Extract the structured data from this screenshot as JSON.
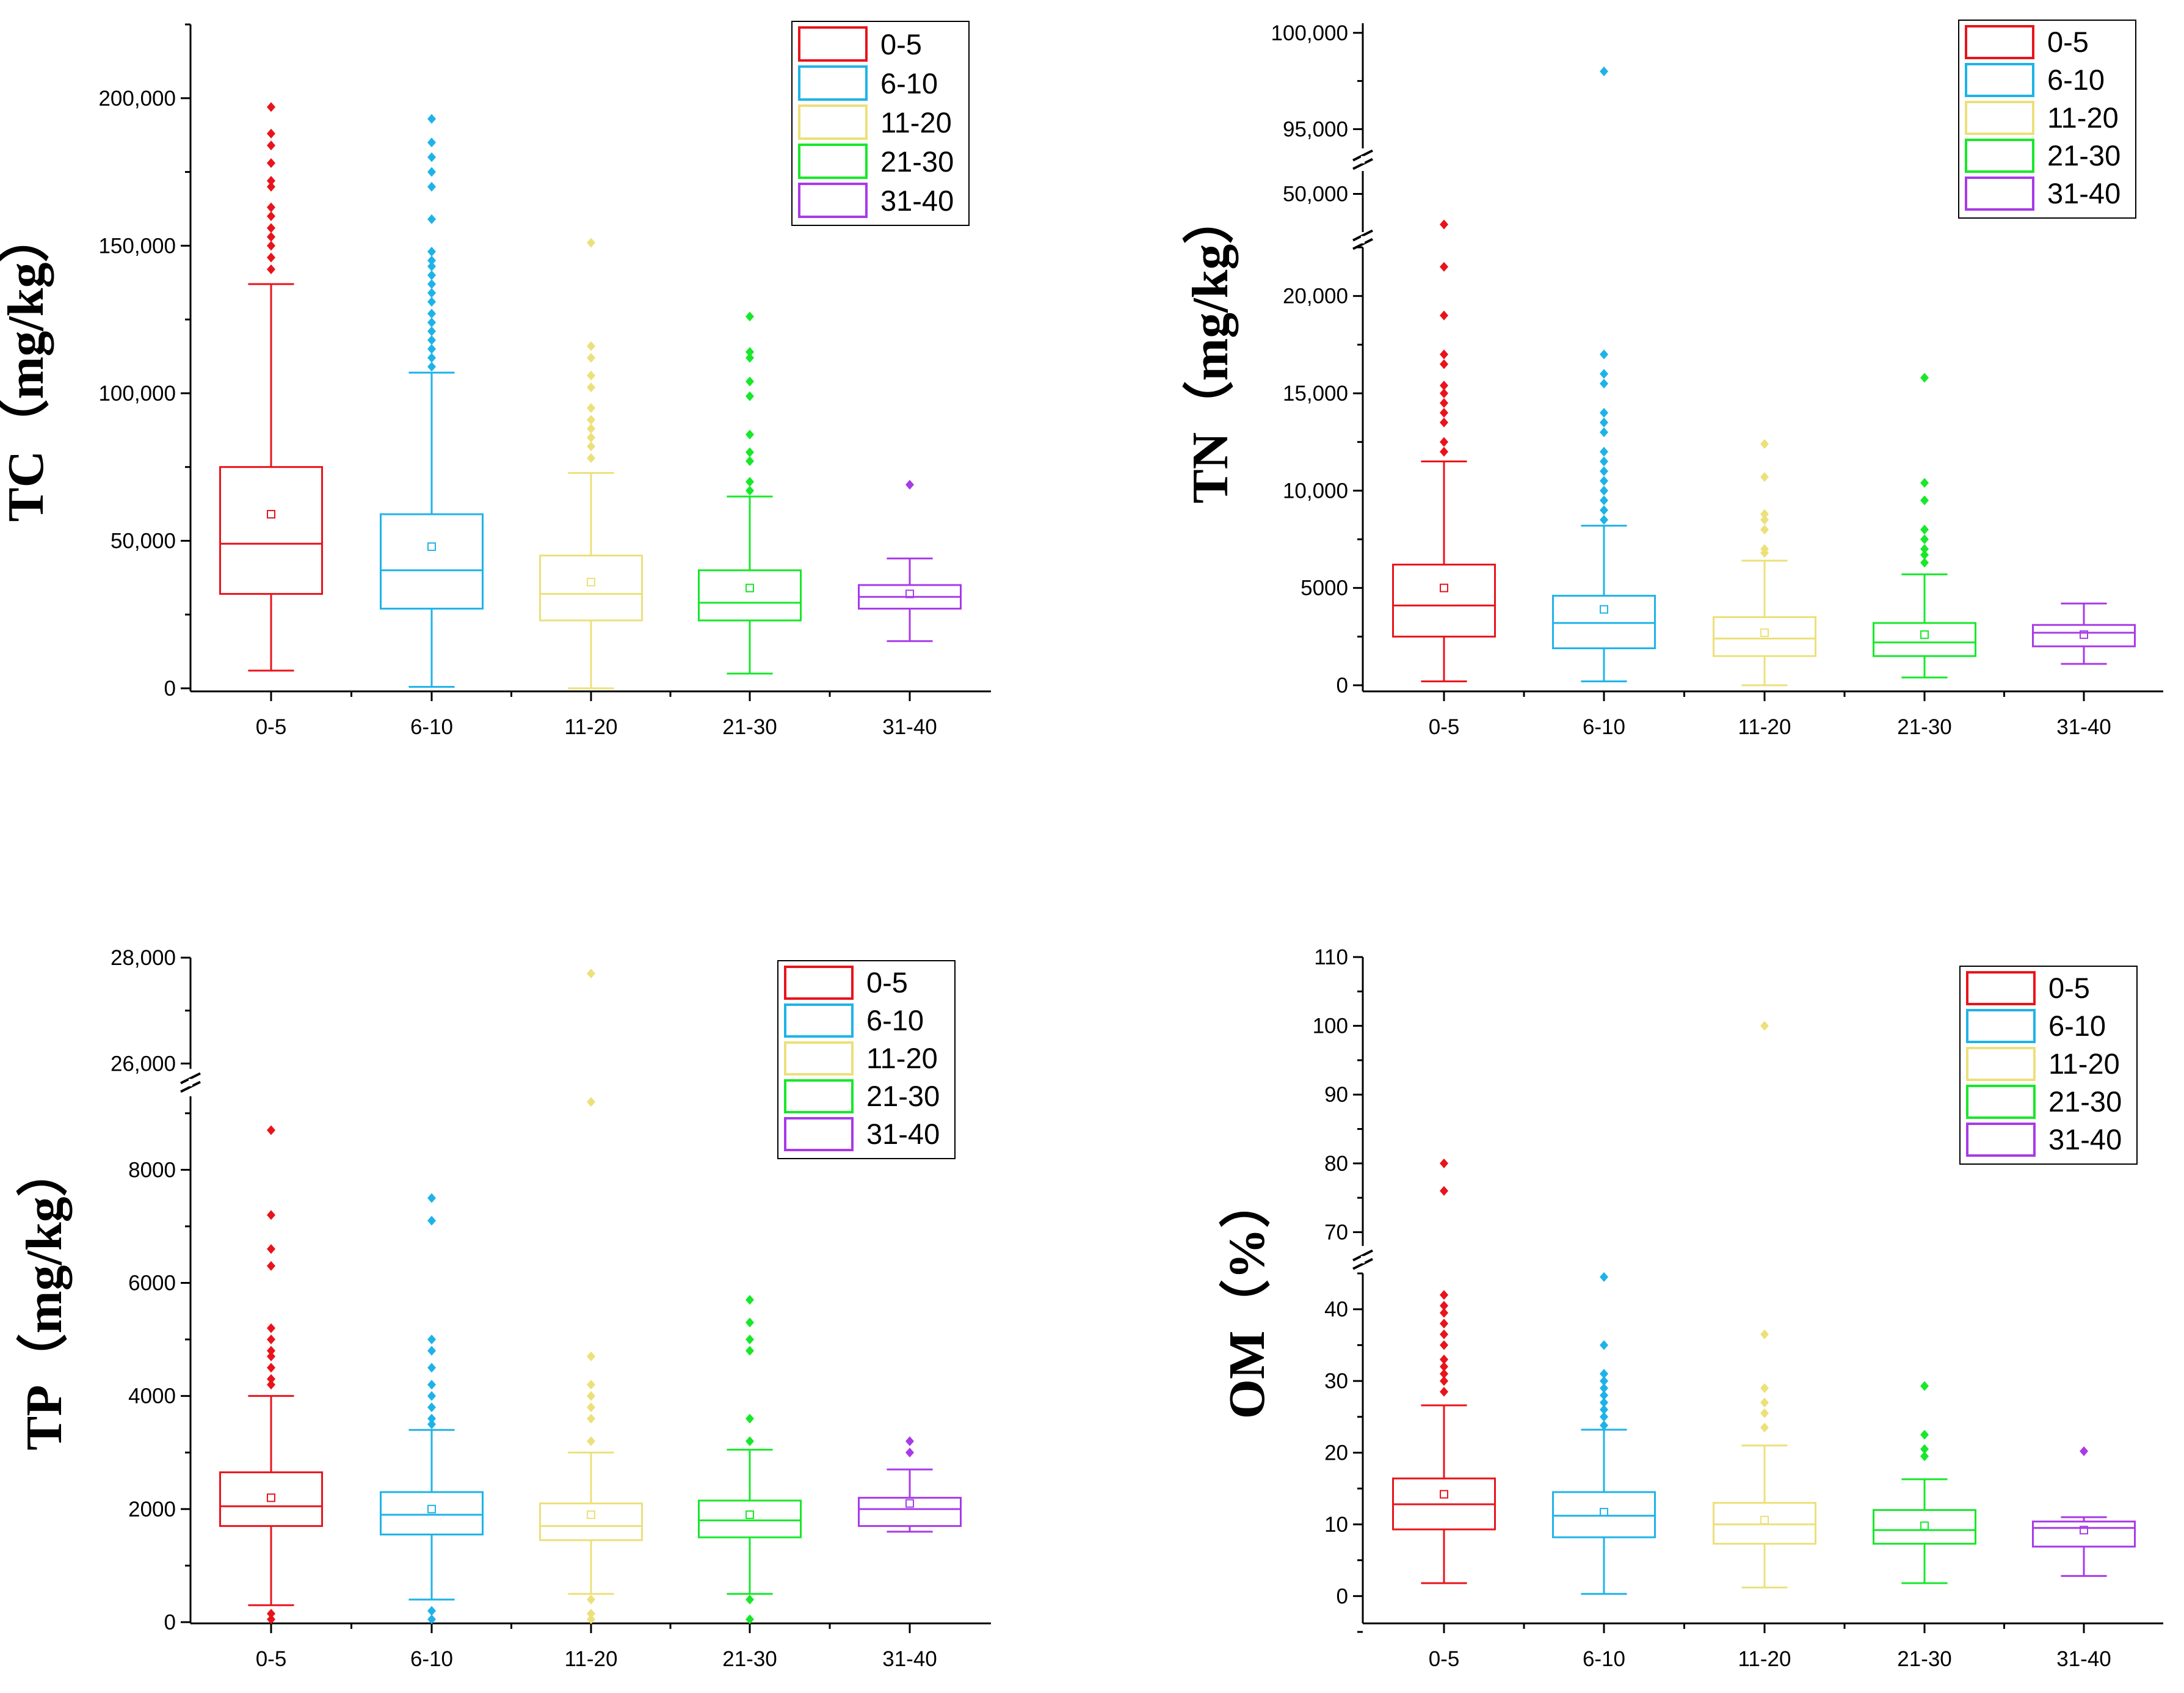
{
  "legend_entries": [
    "0-5",
    "6-10",
    "11-20",
    "21-30",
    "31-40"
  ],
  "colors": {
    "0-5": "#e8141b",
    "6-10": "#1eb3e8",
    "11-20": "#ece07a",
    "21-30": "#17e82a",
    "31-40": "#a83ae8"
  },
  "chart_data": [
    {
      "type": "box",
      "id": "TC",
      "ylabel": "TC（mg/kg）",
      "categories": [
        "0-5",
        "6-10",
        "11-20",
        "21-30",
        "31-40"
      ],
      "yticks": [
        "0",
        "50,000",
        "100,000",
        "150,000",
        "200,000"
      ],
      "ylim": [
        0,
        225000
      ],
      "boxes": [
        {
          "category": "0-5",
          "q1": 32000,
          "median": 49000,
          "q3": 75000,
          "whisker_low": 6000,
          "whisker_high": 137000,
          "mean": 59000,
          "outliers": [
            142000,
            146000,
            150000,
            153000,
            156000,
            160000,
            163000,
            170000,
            172000,
            178000,
            184000,
            188000,
            197000
          ]
        },
        {
          "category": "6-10",
          "q1": 27000,
          "median": 40000,
          "q3": 59000,
          "whisker_low": 500,
          "whisker_high": 107000,
          "mean": 48000,
          "outliers": [
            109000,
            112000,
            115000,
            118000,
            121000,
            124000,
            127000,
            131000,
            134000,
            137000,
            140000,
            143000,
            145000,
            148000,
            159000,
            170000,
            175000,
            180000,
            185000,
            193000
          ]
        },
        {
          "category": "11-20",
          "q1": 23000,
          "median": 32000,
          "q3": 45000,
          "whisker_low": 0,
          "whisker_high": 73000,
          "mean": 36000,
          "outliers": [
            78000,
            82000,
            85000,
            88000,
            91000,
            95000,
            102000,
            106000,
            112000,
            116000,
            151000
          ]
        },
        {
          "category": "21-30",
          "q1": 23000,
          "median": 29000,
          "q3": 40000,
          "whisker_low": 5000,
          "whisker_high": 65000,
          "mean": 34000,
          "outliers": [
            67000,
            70000,
            77000,
            80000,
            86000,
            99000,
            104000,
            112000,
            114000,
            126000
          ]
        },
        {
          "category": "31-40",
          "q1": 27000,
          "median": 31000,
          "q3": 35000,
          "whisker_low": 16000,
          "whisker_high": 44000,
          "mean": 32000,
          "outliers": [
            69000
          ]
        }
      ]
    },
    {
      "type": "box",
      "id": "TN",
      "ylabel": "TN（mg/kg）",
      "categories": [
        "0-5",
        "6-10",
        "11-20",
        "21-30",
        "31-40"
      ],
      "yticks_lower": [
        "0",
        "5000",
        "10,000",
        "15,000",
        "20,000"
      ],
      "yticks_upper": [
        "50,000",
        "95,000",
        "100,000"
      ],
      "break_segments": [
        [
          0,
          22500
        ],
        [
          45000,
          53000
        ],
        [
          94000,
          100500
        ]
      ],
      "boxes": [
        {
          "category": "0-5",
          "q1": 2500,
          "median": 4100,
          "q3": 6200,
          "whisker_low": 200,
          "whisker_high": 11500,
          "mean": 5000,
          "outliers": [
            12000,
            12500,
            13500,
            14000,
            14500,
            15000,
            15400,
            16500,
            17000,
            19000,
            21500,
            46000
          ]
        },
        {
          "category": "6-10",
          "q1": 1900,
          "median": 3200,
          "q3": 4600,
          "whisker_low": 200,
          "whisker_high": 8200,
          "mean": 3900,
          "outliers": [
            8500,
            9000,
            9500,
            10000,
            10500,
            11000,
            11500,
            12000,
            13000,
            13500,
            14000,
            15500,
            16000,
            17000,
            98000
          ]
        },
        {
          "category": "11-20",
          "q1": 1500,
          "median": 2400,
          "q3": 3500,
          "whisker_low": 0,
          "whisker_high": 6400,
          "mean": 2700,
          "outliers": [
            6800,
            7000,
            8000,
            8500,
            8800,
            10700,
            12400
          ]
        },
        {
          "category": "21-30",
          "q1": 1500,
          "median": 2200,
          "q3": 3200,
          "whisker_low": 400,
          "whisker_high": 5700,
          "mean": 2600,
          "outliers": [
            6300,
            6700,
            7000,
            7500,
            8000,
            9500,
            10400,
            15800
          ]
        },
        {
          "category": "31-40",
          "q1": 2000,
          "median": 2700,
          "q3": 3100,
          "whisker_low": 1100,
          "whisker_high": 4200,
          "mean": 2600,
          "outliers": []
        }
      ]
    },
    {
      "type": "box",
      "id": "TP",
      "ylabel": "TP（mg/kg）",
      "categories": [
        "0-5",
        "6-10",
        "11-20",
        "21-30",
        "31-40"
      ],
      "yticks_lower": [
        "0",
        "2000",
        "4000",
        "6000",
        "8000"
      ],
      "yticks_upper": [
        "26,000",
        "28,000"
      ],
      "break_segments": [
        [
          0,
          9300
        ],
        [
          25900,
          28000
        ]
      ],
      "boxes": [
        {
          "category": "0-5",
          "q1": 1700,
          "median": 2050,
          "q3": 2650,
          "whisker_low": 300,
          "whisker_high": 4000,
          "mean": 2200,
          "outliers": [
            50,
            150,
            4200,
            4300,
            4500,
            4700,
            4800,
            5000,
            5200,
            6300,
            6600,
            7200,
            8700
          ]
        },
        {
          "category": "6-10",
          "q1": 1550,
          "median": 1900,
          "q3": 2300,
          "whisker_low": 400,
          "whisker_high": 3400,
          "mean": 2000,
          "outliers": [
            50,
            200,
            3500,
            3600,
            3800,
            4000,
            4200,
            4500,
            4800,
            5000,
            7100,
            7500
          ]
        },
        {
          "category": "11-20",
          "q1": 1450,
          "median": 1700,
          "q3": 2100,
          "whisker_low": 500,
          "whisker_high": 3000,
          "mean": 1900,
          "outliers": [
            50,
            150,
            400,
            3200,
            3600,
            3800,
            4000,
            4200,
            4700,
            9200,
            27700
          ]
        },
        {
          "category": "21-30",
          "q1": 1500,
          "median": 1800,
          "q3": 2150,
          "whisker_low": 500,
          "whisker_high": 3050,
          "mean": 1900,
          "outliers": [
            50,
            400,
            3200,
            3600,
            4800,
            5000,
            5300,
            5700
          ]
        },
        {
          "category": "31-40",
          "q1": 1700,
          "median": 2000,
          "q3": 2200,
          "whisker_low": 1600,
          "whisker_high": 2700,
          "mean": 2100,
          "outliers": [
            3000,
            3200
          ]
        }
      ]
    },
    {
      "type": "box",
      "id": "OM",
      "ylabel": "OM（%）",
      "categories": [
        "0-5",
        "6-10",
        "11-20",
        "21-30",
        "31-40"
      ],
      "yticks_lower": [
        "0",
        "10",
        "20",
        "30",
        "40"
      ],
      "yticks_upper": [
        "70",
        "80",
        "90",
        "100",
        "110"
      ],
      "break_segments": [
        [
          -5,
          45
        ],
        [
          68,
          110
        ]
      ],
      "boxes": [
        {
          "category": "0-5",
          "q1": 9.3,
          "median": 12.8,
          "q3": 16.4,
          "whisker_low": 1.8,
          "whisker_high": 26.6,
          "mean": 14.2,
          "outliers": [
            28.5,
            30,
            31,
            32,
            33,
            35,
            36.5,
            38,
            39.5,
            40.5,
            42,
            76,
            80
          ]
        },
        {
          "category": "6-10",
          "q1": 8.2,
          "median": 11.2,
          "q3": 14.5,
          "whisker_low": 0.3,
          "whisker_high": 23.2,
          "mean": 11.7,
          "outliers": [
            23.8,
            25,
            26,
            27,
            28,
            29,
            30,
            31,
            35,
            44.5
          ]
        },
        {
          "category": "11-20",
          "q1": 7.3,
          "median": 10,
          "q3": 13,
          "whisker_low": 1.2,
          "whisker_high": 21,
          "mean": 10.6,
          "outliers": [
            23.5,
            25.5,
            27,
            29,
            36.5,
            100
          ]
        },
        {
          "category": "21-30",
          "q1": 7.3,
          "median": 9.2,
          "q3": 12,
          "whisker_low": 1.8,
          "whisker_high": 16.3,
          "mean": 9.8,
          "outliers": [
            19.5,
            20.5,
            22.5,
            29.3
          ]
        },
        {
          "category": "31-40",
          "q1": 6.9,
          "median": 9.5,
          "q3": 10.4,
          "whisker_low": 2.8,
          "whisker_high": 11,
          "mean": 9.2,
          "outliers": [
            20.2
          ]
        }
      ]
    }
  ]
}
